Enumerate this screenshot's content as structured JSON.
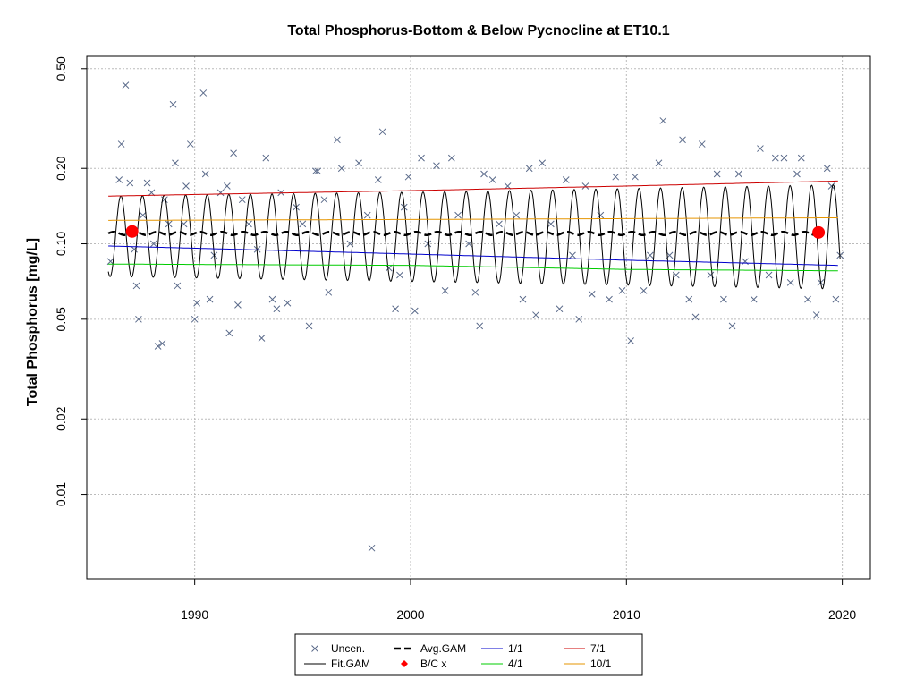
{
  "chart_data": {
    "type": "scatter",
    "title": "Total Phosphorus-Bottom & Below Pycnocline at ET10.1",
    "ylabel": "Total Phosphorus [mg/L]",
    "xlabel": "",
    "y_scale": "log",
    "xlim": [
      1985.0,
      2021.3
    ],
    "ylim": [
      0.0046,
      0.56
    ],
    "x_ticks": [
      "1990",
      "2000",
      "2010",
      "2020"
    ],
    "y_ticks": [
      "0.01",
      "0.02",
      "0.05",
      "0.10",
      "0.20",
      "0.50"
    ],
    "grid": true,
    "legend_position": "bottom",
    "legend": [
      "Uncen.",
      "Fit.GAM",
      "Avg.GAM",
      "B/C x",
      "1/1",
      "4/1",
      "7/1",
      "10/1"
    ],
    "series": [
      {
        "name": "Uncen.",
        "kind": "points",
        "marker": "x",
        "color": "#5a6a8a",
        "points": [
          [
            1986.1,
            0.085
          ],
          [
            1986.5,
            0.18
          ],
          [
            1986.6,
            0.25
          ],
          [
            1986.8,
            0.43
          ],
          [
            1987.0,
            0.175
          ],
          [
            1987.2,
            0.095
          ],
          [
            1987.3,
            0.068
          ],
          [
            1987.4,
            0.05
          ],
          [
            1987.6,
            0.13
          ],
          [
            1987.8,
            0.175
          ],
          [
            1988.0,
            0.16
          ],
          [
            1988.1,
            0.1
          ],
          [
            1988.3,
            0.039
          ],
          [
            1988.5,
            0.04
          ],
          [
            1988.6,
            0.15
          ],
          [
            1988.8,
            0.12
          ],
          [
            1989.0,
            0.36
          ],
          [
            1989.1,
            0.21
          ],
          [
            1989.2,
            0.068
          ],
          [
            1989.5,
            0.12
          ],
          [
            1989.6,
            0.17
          ],
          [
            1989.8,
            0.25
          ],
          [
            1990.0,
            0.05
          ],
          [
            1990.1,
            0.058
          ],
          [
            1990.4,
            0.4
          ],
          [
            1990.5,
            0.19
          ],
          [
            1990.7,
            0.06
          ],
          [
            1990.9,
            0.09
          ],
          [
            1991.2,
            0.16
          ],
          [
            1991.5,
            0.17
          ],
          [
            1991.6,
            0.044
          ],
          [
            1991.8,
            0.23
          ],
          [
            1992.0,
            0.057
          ],
          [
            1992.2,
            0.15
          ],
          [
            1992.5,
            0.12
          ],
          [
            1992.9,
            0.095
          ],
          [
            1993.1,
            0.042
          ],
          [
            1993.3,
            0.22
          ],
          [
            1993.6,
            0.06
          ],
          [
            1993.8,
            0.055
          ],
          [
            1994.0,
            0.16
          ],
          [
            1994.3,
            0.058
          ],
          [
            1994.7,
            0.14
          ],
          [
            1995.0,
            0.12
          ],
          [
            1995.3,
            0.047
          ],
          [
            1995.6,
            0.195
          ],
          [
            1995.7,
            0.195
          ],
          [
            1996.0,
            0.15
          ],
          [
            1996.2,
            0.064
          ],
          [
            1996.6,
            0.26
          ],
          [
            1996.8,
            0.2
          ],
          [
            1997.2,
            0.1
          ],
          [
            1997.6,
            0.21
          ],
          [
            1998.0,
            0.13
          ],
          [
            1998.2,
            0.0061
          ],
          [
            1998.5,
            0.18
          ],
          [
            1998.7,
            0.28
          ],
          [
            1999.0,
            0.08
          ],
          [
            1999.3,
            0.055
          ],
          [
            1999.5,
            0.075
          ],
          [
            1999.7,
            0.14
          ],
          [
            1999.9,
            0.185
          ],
          [
            2000.2,
            0.054
          ],
          [
            2000.5,
            0.22
          ],
          [
            2000.8,
            0.1
          ],
          [
            2001.2,
            0.205
          ],
          [
            2001.6,
            0.065
          ],
          [
            2001.9,
            0.22
          ],
          [
            2002.2,
            0.13
          ],
          [
            2002.7,
            0.1
          ],
          [
            2003.0,
            0.064
          ],
          [
            2003.2,
            0.047
          ],
          [
            2003.4,
            0.19
          ],
          [
            2003.8,
            0.18
          ],
          [
            2004.1,
            0.12
          ],
          [
            2004.5,
            0.17
          ],
          [
            2004.9,
            0.13
          ],
          [
            2005.2,
            0.06
          ],
          [
            2005.5,
            0.2
          ],
          [
            2005.8,
            0.052
          ],
          [
            2006.1,
            0.21
          ],
          [
            2006.5,
            0.12
          ],
          [
            2006.9,
            0.055
          ],
          [
            2007.2,
            0.18
          ],
          [
            2007.5,
            0.09
          ],
          [
            2007.8,
            0.05
          ],
          [
            2008.1,
            0.17
          ],
          [
            2008.4,
            0.063
          ],
          [
            2008.8,
            0.13
          ],
          [
            2009.2,
            0.06
          ],
          [
            2009.5,
            0.185
          ],
          [
            2009.8,
            0.065
          ],
          [
            2010.2,
            0.041
          ],
          [
            2010.4,
            0.185
          ],
          [
            2010.8,
            0.065
          ],
          [
            2011.1,
            0.09
          ],
          [
            2011.5,
            0.21
          ],
          [
            2011.7,
            0.31
          ],
          [
            2012.0,
            0.09
          ],
          [
            2012.3,
            0.075
          ],
          [
            2012.6,
            0.26
          ],
          [
            2012.9,
            0.06
          ],
          [
            2013.2,
            0.051
          ],
          [
            2013.5,
            0.25
          ],
          [
            2013.9,
            0.075
          ],
          [
            2014.2,
            0.19
          ],
          [
            2014.5,
            0.06
          ],
          [
            2014.9,
            0.047
          ],
          [
            2015.2,
            0.19
          ],
          [
            2015.5,
            0.085
          ],
          [
            2015.9,
            0.06
          ],
          [
            2016.2,
            0.24
          ],
          [
            2016.6,
            0.075
          ],
          [
            2016.9,
            0.22
          ],
          [
            2017.3,
            0.22
          ],
          [
            2017.6,
            0.07
          ],
          [
            2017.9,
            0.19
          ],
          [
            2018.1,
            0.22
          ],
          [
            2018.4,
            0.06
          ],
          [
            2018.8,
            0.052
          ],
          [
            2019.0,
            0.07
          ],
          [
            2019.3,
            0.2
          ],
          [
            2019.5,
            0.17
          ],
          [
            2019.7,
            0.06
          ],
          [
            2019.9,
            0.09
          ]
        ]
      },
      {
        "name": "Fit.GAM",
        "kind": "seasonal",
        "color": "#000000",
        "x_start": 1986.0,
        "x_end": 2019.9,
        "low": [
          [
            1986.0,
            0.074
          ],
          [
            2003.0,
            0.07
          ],
          [
            2019.9,
            0.066
          ]
        ],
        "high": [
          [
            1986.0,
            0.155
          ],
          [
            2003.0,
            0.162
          ],
          [
            2019.9,
            0.172
          ]
        ]
      },
      {
        "name": "Avg.GAM",
        "kind": "line",
        "color": "#000000",
        "dashed": true,
        "points": [
          [
            1986.0,
            0.11
          ],
          [
            1995.0,
            0.11
          ],
          [
            2005.0,
            0.11
          ],
          [
            2019.0,
            0.11
          ]
        ]
      },
      {
        "name": "B/C x",
        "kind": "points",
        "marker": "dot",
        "color": "#ff0000",
        "points": [
          [
            1987.1,
            0.112
          ],
          [
            2018.9,
            0.111
          ]
        ]
      },
      {
        "name": "1/1",
        "kind": "line",
        "color": "#0000cc",
        "points": [
          [
            1986.0,
            0.098
          ],
          [
            2000.0,
            0.091
          ],
          [
            2010.0,
            0.086
          ],
          [
            2019.8,
            0.082
          ]
        ]
      },
      {
        "name": "4/1",
        "kind": "line",
        "color": "#00cc00",
        "points": [
          [
            1986.0,
            0.083
          ],
          [
            2000.0,
            0.082
          ],
          [
            2010.0,
            0.079
          ],
          [
            2019.8,
            0.078
          ]
        ]
      },
      {
        "name": "7/1",
        "kind": "line",
        "color": "#cc0000",
        "points": [
          [
            1986.0,
            0.155
          ],
          [
            2000.0,
            0.163
          ],
          [
            2010.0,
            0.17
          ],
          [
            2019.8,
            0.178
          ]
        ]
      },
      {
        "name": "10/1",
        "kind": "line",
        "color": "#e69500",
        "points": [
          [
            1986.0,
            0.124
          ],
          [
            2000.0,
            0.125
          ],
          [
            2010.0,
            0.126
          ],
          [
            2019.8,
            0.127
          ]
        ]
      }
    ]
  }
}
